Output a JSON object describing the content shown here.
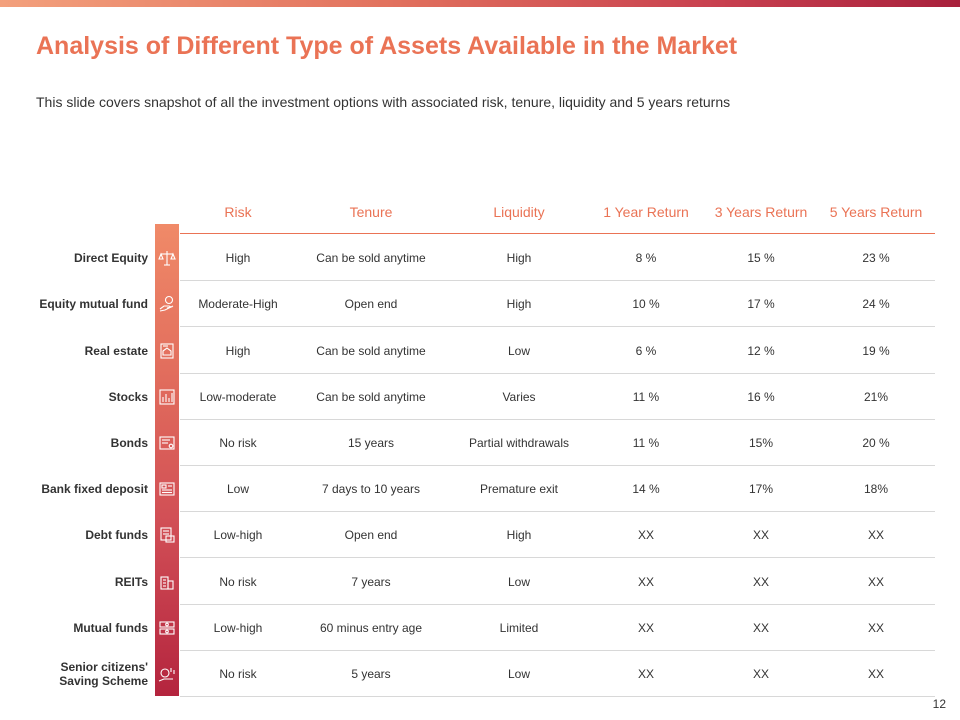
{
  "slide": {
    "title": "Analysis of Different Type of Assets Available in the Market",
    "subtitle": "This slide covers snapshot of all the investment options with associated risk, tenure, liquidity and 5 years returns",
    "page_number": "12"
  },
  "colors": {
    "accent": "#ea7355",
    "gradient_start": "#f3a07c",
    "gradient_end": "#a8203c",
    "row_divider": "#d8d8d8"
  },
  "table": {
    "headers": {
      "risk": "Risk",
      "tenure": "Tenure",
      "liquidity": "Liquidity",
      "return_1y": "1 Year Return",
      "return_3y": "3 Years Return",
      "return_5y": "5 Years Return"
    },
    "rows": [
      {
        "name": "Direct Equity",
        "icon": "scales-icon",
        "risk": "High",
        "tenure": "Can be sold anytime",
        "liquidity": "High",
        "return_1y": "8 %",
        "return_3y": "15 %",
        "return_5y": "23 %"
      },
      {
        "name": "Equity mutual fund",
        "icon": "hand-coin-icon",
        "risk": "Moderate-High",
        "tenure": "Open end",
        "liquidity": "High",
        "return_1y": "10 %",
        "return_3y": "17 %",
        "return_5y": "24 %"
      },
      {
        "name": "Real estate",
        "icon": "property-document-icon",
        "risk": "High",
        "tenure": "Can be sold anytime",
        "liquidity": "Low",
        "return_1y": "6 %",
        "return_3y": "12 %",
        "return_5y": "19 %"
      },
      {
        "name": "Stocks",
        "icon": "bar-chart-icon",
        "risk": "Low-moderate",
        "tenure": "Can be sold anytime",
        "liquidity": "Varies",
        "return_1y": "11 %",
        "return_3y": "16 %",
        "return_5y": "21%"
      },
      {
        "name": "Bonds",
        "icon": "certificate-icon",
        "risk": "No risk",
        "tenure": "15 years",
        "liquidity": "Partial withdrawals",
        "return_1y": "11 %",
        "return_3y": "15%",
        "return_5y": "20 %"
      },
      {
        "name": "Bank fixed deposit",
        "icon": "deposit-receipt-icon",
        "risk": "Low",
        "tenure": "7 days to 10 years",
        "liquidity": "Premature exit",
        "return_1y": "14 %",
        "return_3y": "17%",
        "return_5y": "18%"
      },
      {
        "name": "Debt funds",
        "icon": "invoice-icon",
        "risk": "Low-high",
        "tenure": "Open end",
        "liquidity": "High",
        "return_1y": "XX",
        "return_3y": "XX",
        "return_5y": "XX"
      },
      {
        "name": "REITs",
        "icon": "building-icon",
        "risk": "No risk",
        "tenure": "7 years",
        "liquidity": "Low",
        "return_1y": "XX",
        "return_3y": "XX",
        "return_5y": "XX"
      },
      {
        "name": "Mutual funds",
        "icon": "money-stack-icon",
        "risk": "Low-high",
        "tenure": "60 minus entry age",
        "liquidity": "Limited",
        "return_1y": "XX",
        "return_3y": "XX",
        "return_5y": "XX"
      },
      {
        "name": "Senior citizens' Saving Scheme",
        "icon": "savings-hand-icon",
        "risk": "No risk",
        "tenure": "5 years",
        "liquidity": "Low",
        "return_1y": "XX",
        "return_3y": "XX",
        "return_5y": "XX"
      }
    ]
  }
}
